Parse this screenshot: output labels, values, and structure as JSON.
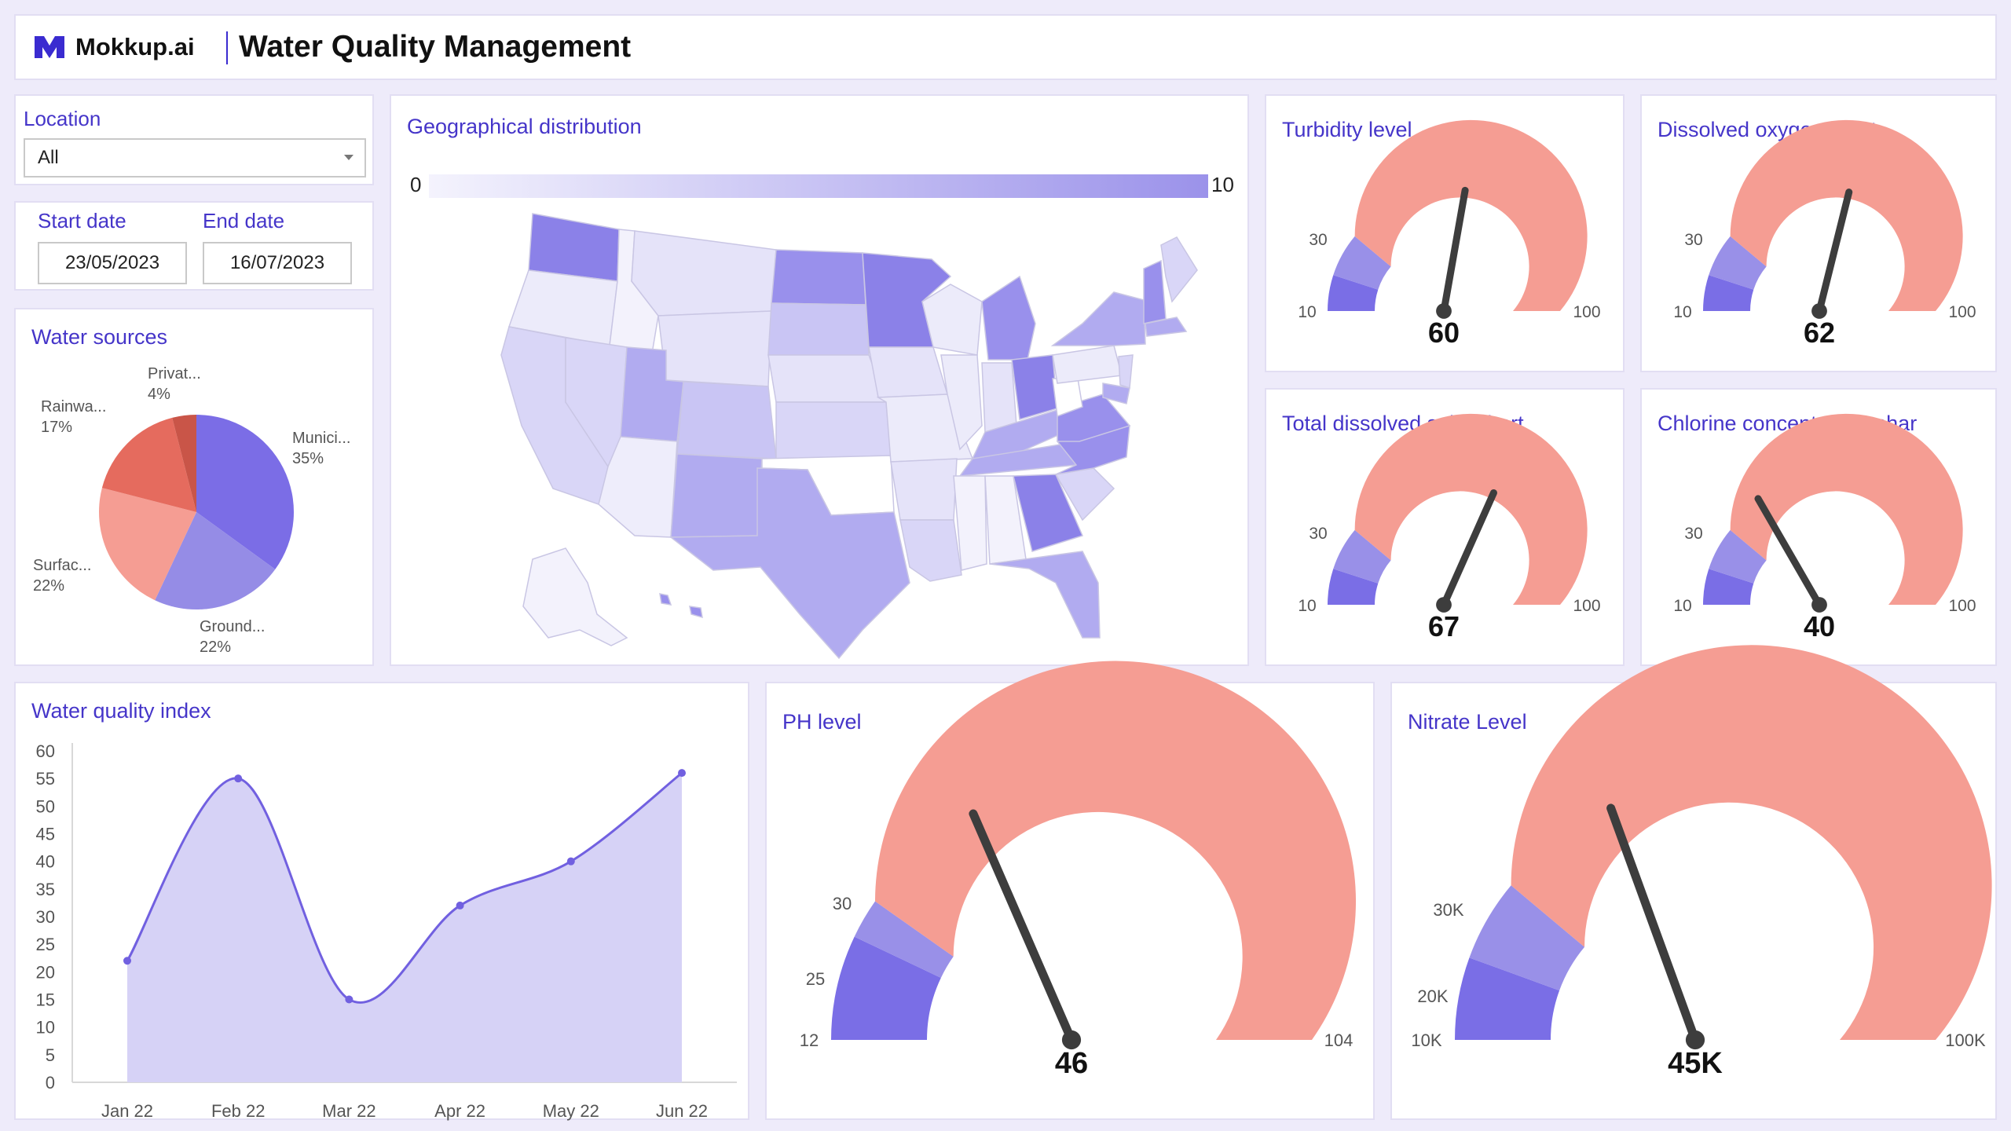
{
  "header": {
    "brand": "Mokkup.ai",
    "title": "Water Quality Management"
  },
  "filters": {
    "location_label": "Location",
    "location_value": "All",
    "start_label": "Start date",
    "start_value": "23/05/2023",
    "end_label": "End date",
    "end_value": "16/07/2023"
  },
  "water_sources": {
    "title": "Water sources",
    "slices": [
      {
        "label": "Munici...",
        "pct": "35%",
        "value": 35,
        "color": "#7b6de6"
      },
      {
        "label": "Ground...",
        "pct": "22%",
        "value": 22,
        "color": "#958ce6"
      },
      {
        "label": "Surfac...",
        "pct": "22%",
        "value": 22,
        "color": "#f59d93"
      },
      {
        "label": "Rainwa...",
        "pct": "17%",
        "value": 17,
        "color": "#e56b5e"
      },
      {
        "label": "Privat...",
        "pct": "4%",
        "value": 4,
        "color": "#c95548"
      }
    ]
  },
  "geo": {
    "title": "Geographical distribution",
    "scale_min": "0",
    "scale_max": "10"
  },
  "gauges_small": [
    {
      "title": "Turbidity level",
      "value": 60,
      "value_label": "60",
      "min": "10",
      "mid": "30",
      "max": "100"
    },
    {
      "title": "Dissolved oxygen chart",
      "value": 62,
      "value_label": "62",
      "min": "10",
      "mid": "30",
      "max": "100"
    },
    {
      "title": "Total dissolved solid chart",
      "value": 67,
      "value_label": "67",
      "min": "10",
      "mid": "30",
      "max": "100"
    },
    {
      "title": "Chlorine concentration char",
      "value": 40,
      "value_label": "40",
      "min": "10",
      "mid": "30",
      "max": "100"
    }
  ],
  "ph": {
    "title": "PH level",
    "value": 46,
    "value_label": "46",
    "min": "12",
    "t1": "25",
    "t2": "30",
    "max": "104"
  },
  "nitrate": {
    "title": "Nitrate Level",
    "value": 45000,
    "value_label": "45K",
    "min": "10K",
    "t1": "20K",
    "t2": "30K",
    "max": "100K"
  },
  "chart_data": {
    "type": "area",
    "title": "Water quality index",
    "categories": [
      "Jan 22",
      "Feb 22",
      "Mar 22",
      "Apr 22",
      "May 22",
      "Jun 22"
    ],
    "values": [
      22,
      55,
      15,
      32,
      40,
      56
    ],
    "yticks": [
      "0",
      "5",
      "10",
      "15",
      "20",
      "25",
      "30",
      "35",
      "40",
      "45",
      "50",
      "55",
      "60"
    ],
    "ylim": [
      0,
      60
    ],
    "grid": false
  },
  "colors": {
    "accent": "#4535c9",
    "gauge_low": "#7a6ee6",
    "gauge_mid": "#9990e8",
    "gauge_high": "#f59d93",
    "needle": "#3d3d3d",
    "area_fill": "#d6d2f6",
    "line": "#7160e0"
  }
}
